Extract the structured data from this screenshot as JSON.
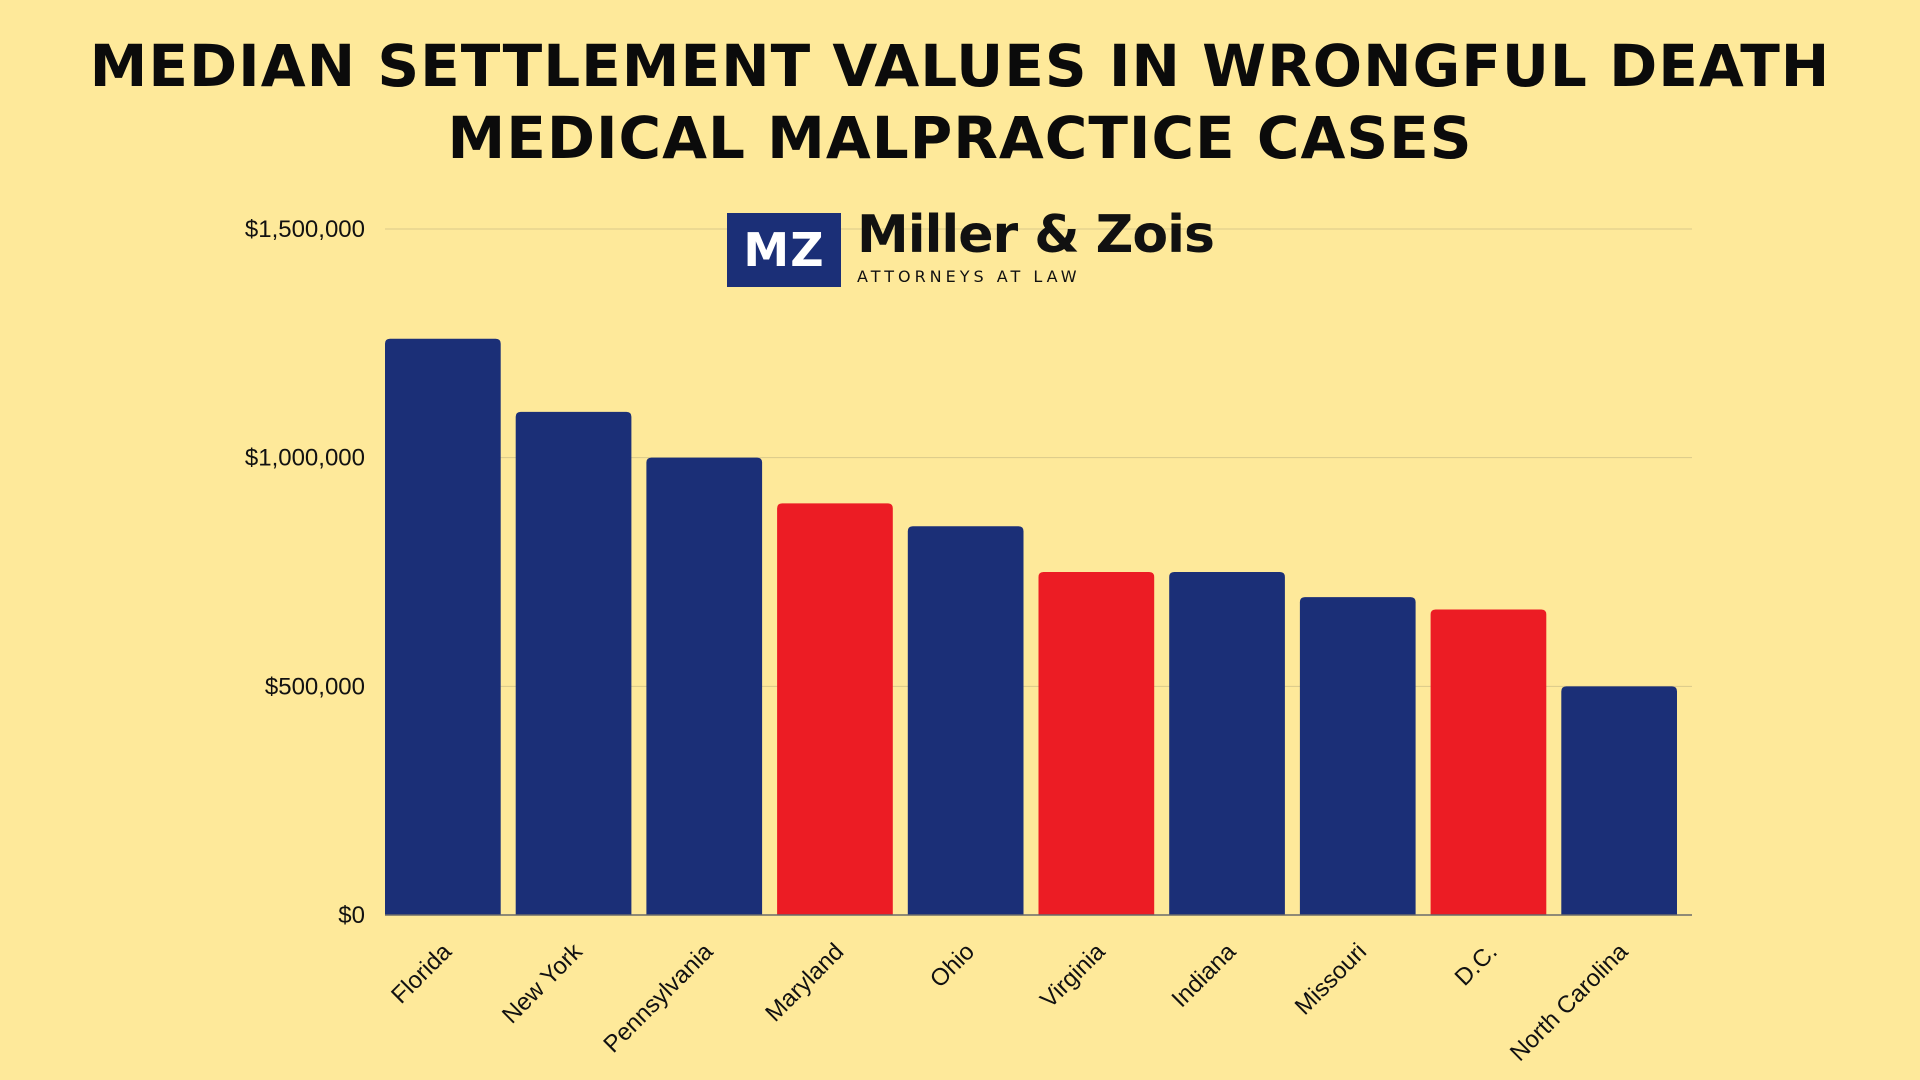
{
  "title": {
    "line1": "MEDIAN SETTLEMENT VALUES IN WRONGFUL DEATH",
    "line2": "MEDICAL MALPRACTICE CASES"
  },
  "logo": {
    "mark": "MZ",
    "name": "Miller & Zois",
    "tagline": "ATTORNEYS AT LAW"
  },
  "colors": {
    "background": "#FEE99A",
    "navy": "#1B2F77",
    "red": "#EC1C24",
    "grid": "#D9C98A"
  },
  "chart_data": {
    "type": "bar",
    "categories": [
      "Florida",
      "New York",
      "Pennsylvania",
      "Maryland",
      "Ohio",
      "Virginia",
      "Indiana",
      "Missouri",
      "D.C.",
      "North Carolina"
    ],
    "values": [
      1260000,
      1100000,
      1000000,
      900000,
      850000,
      750000,
      750000,
      695000,
      668000,
      500000
    ],
    "bar_colors": [
      "#1B2F77",
      "#1B2F77",
      "#1B2F77",
      "#EC1C24",
      "#1B2F77",
      "#EC1C24",
      "#1B2F77",
      "#1B2F77",
      "#EC1C24",
      "#1B2F77"
    ],
    "ylim": [
      0,
      1500000
    ],
    "yticks": [
      0,
      500000,
      1000000,
      1500000
    ],
    "ytick_labels": [
      "$0",
      "$500,000",
      "$1,000,000",
      "$1,500,000"
    ],
    "grid": true,
    "legend": "none"
  }
}
